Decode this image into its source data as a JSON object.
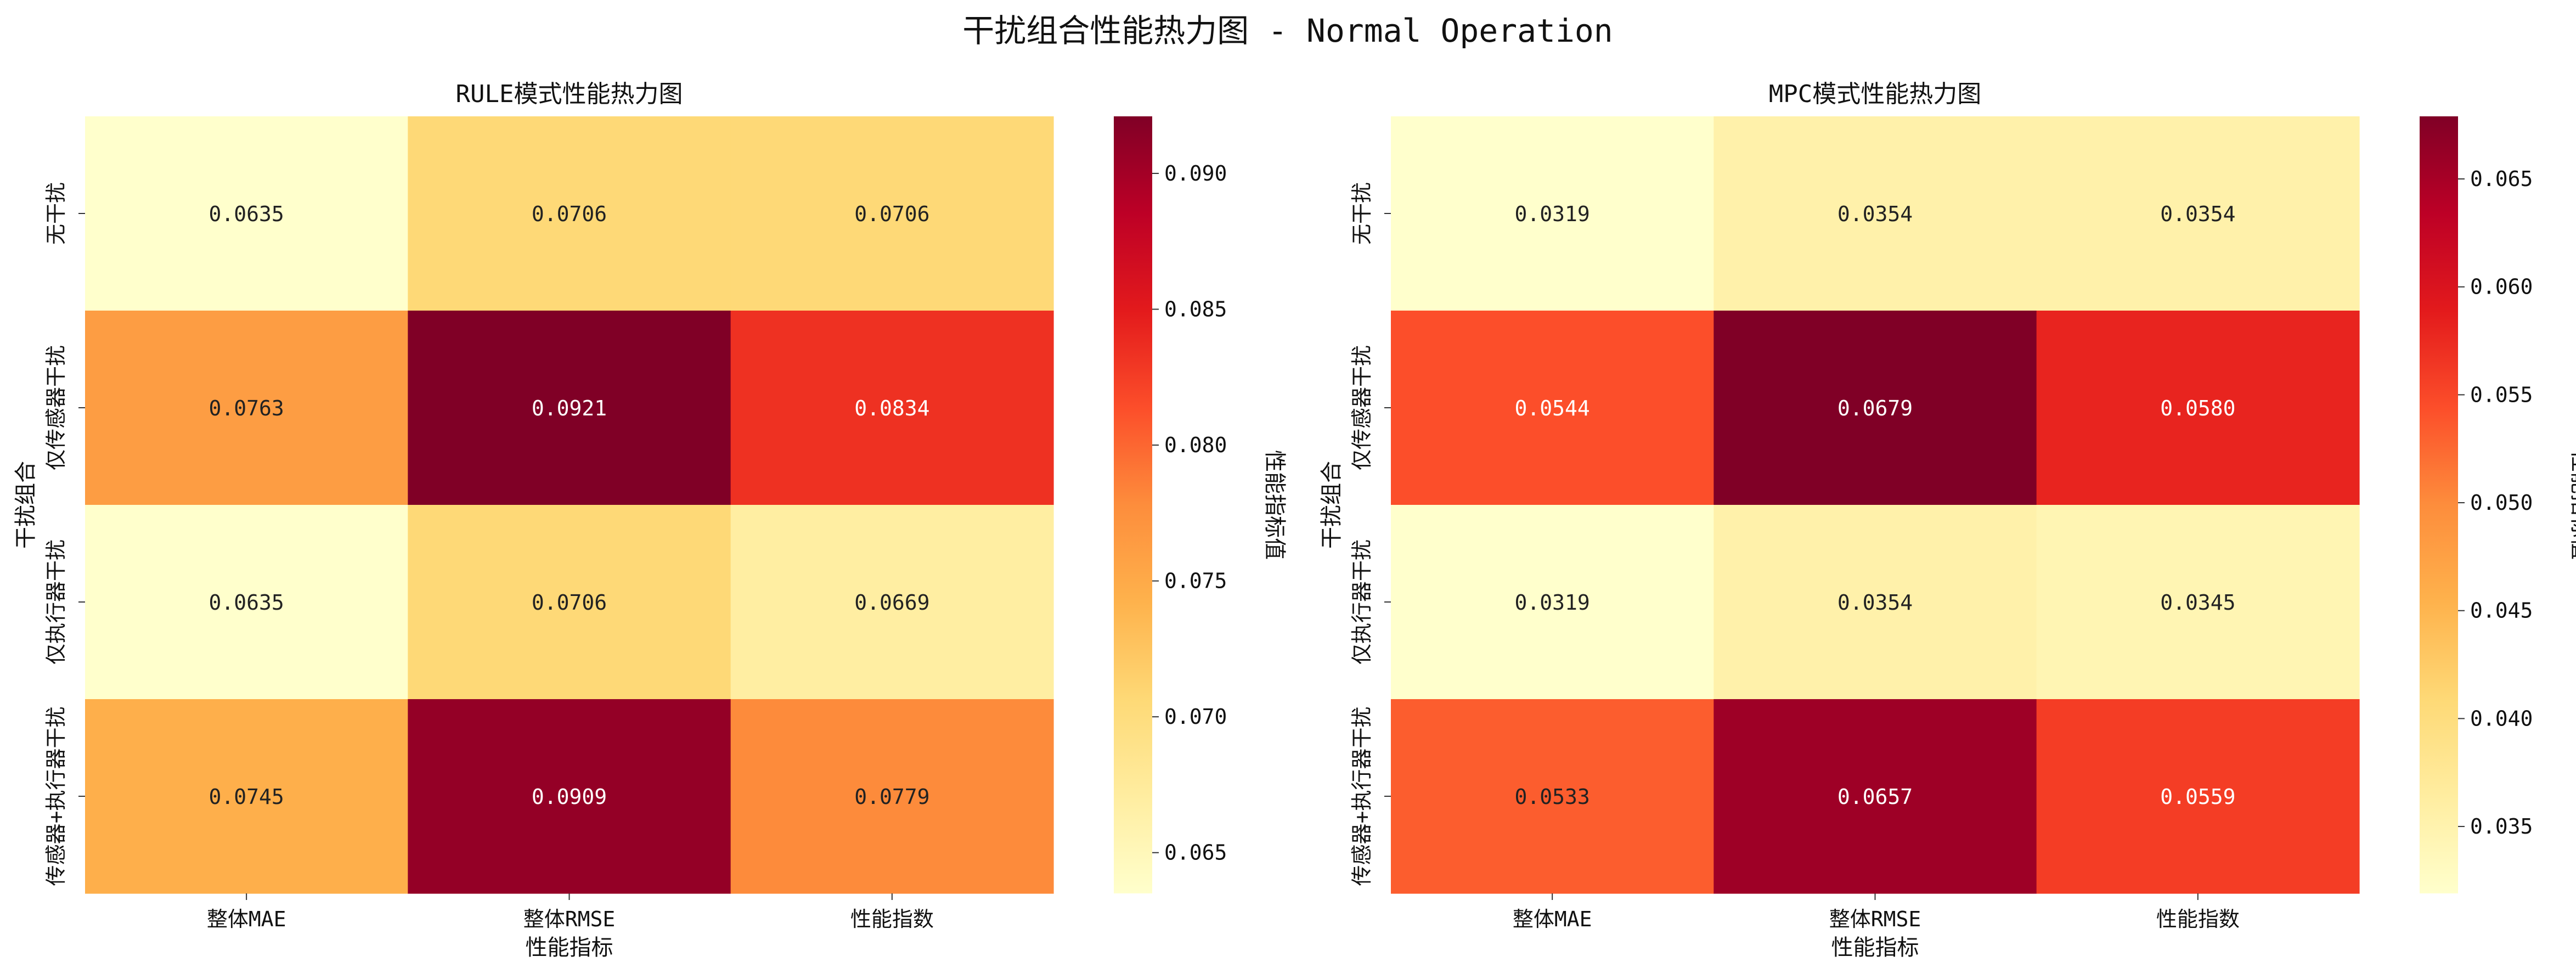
{
  "suptitle": "干扰组合性能热力图 - Normal Operation",
  "chart_data": [
    {
      "type": "heatmap",
      "title": "RULE模式性能热力图",
      "xlabel": "性能指标",
      "ylabel": "干扰组合",
      "x_categories": [
        "整体MAE",
        "整体RMSE",
        "性能指数"
      ],
      "y_categories": [
        "无干扰",
        "仅传感器干扰",
        "仅执行器干扰",
        "传感器+执行器干扰"
      ],
      "values": [
        [
          0.0635,
          0.0706,
          0.0706
        ],
        [
          0.0763,
          0.0921,
          0.0834
        ],
        [
          0.0635,
          0.0706,
          0.0669
        ],
        [
          0.0745,
          0.0909,
          0.0779
        ]
      ],
      "value_labels": [
        [
          "0.0635",
          "0.0706",
          "0.0706"
        ],
        [
          "0.0763",
          "0.0921",
          "0.0834"
        ],
        [
          "0.0635",
          "0.0706",
          "0.0669"
        ],
        [
          "0.0745",
          "0.0909",
          "0.0779"
        ]
      ],
      "colormap": "YlOrRd",
      "vmin": 0.0635,
      "vmax": 0.0921,
      "colorbar_label": "性能指标值",
      "colorbar_ticks": [
        0.065,
        0.07,
        0.075,
        0.08,
        0.085,
        0.09
      ],
      "colorbar_tick_labels": [
        "0.065",
        "0.070",
        "0.075",
        "0.080",
        "0.085",
        "0.090"
      ]
    },
    {
      "type": "heatmap",
      "title": "MPC模式性能热力图",
      "xlabel": "性能指标",
      "ylabel": "干扰组合",
      "x_categories": [
        "整体MAE",
        "整体RMSE",
        "性能指数"
      ],
      "y_categories": [
        "无干扰",
        "仅传感器干扰",
        "仅执行器干扰",
        "传感器+执行器干扰"
      ],
      "values": [
        [
          0.0319,
          0.0354,
          0.0354
        ],
        [
          0.0544,
          0.0679,
          0.058
        ],
        [
          0.0319,
          0.0354,
          0.0345
        ],
        [
          0.0533,
          0.0657,
          0.0559
        ]
      ],
      "value_labels": [
        [
          "0.0319",
          "0.0354",
          "0.0354"
        ],
        [
          "0.0544",
          "0.0679",
          "0.0580"
        ],
        [
          "0.0319",
          "0.0354",
          "0.0345"
        ],
        [
          "0.0533",
          "0.0657",
          "0.0559"
        ]
      ],
      "colormap": "YlOrRd",
      "vmin": 0.0319,
      "vmax": 0.0679,
      "colorbar_label": "性能指标值",
      "colorbar_ticks": [
        0.035,
        0.04,
        0.045,
        0.05,
        0.055,
        0.06,
        0.065
      ],
      "colorbar_tick_labels": [
        "0.035",
        "0.040",
        "0.045",
        "0.050",
        "0.055",
        "0.060",
        "0.065"
      ]
    }
  ]
}
